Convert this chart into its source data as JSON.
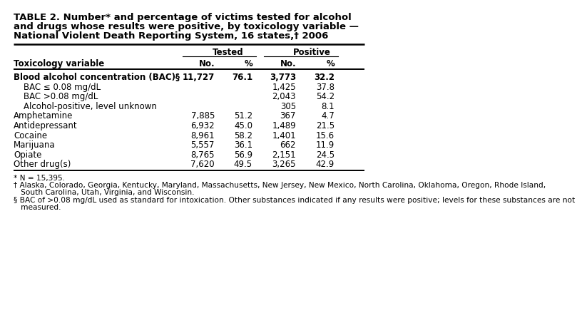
{
  "title_lines": [
    "TABLE 2. Number* and percentage of victims tested for alcohol",
    "and drugs whose results were positive, by toxicology variable —",
    "National Violent Death Reporting System, 16 states,† 2006"
  ],
  "col_header_label": "Toxicology variable",
  "rows": [
    {
      "label": "Blood alcohol concentration (BAC)§",
      "indent": false,
      "bold": true,
      "t_no": "11,727",
      "t_pct": "76.1",
      "p_no": "3,773",
      "p_pct": "32.2"
    },
    {
      "label": "BAC ≤ 0.08 mg/dL",
      "indent": true,
      "bold": false,
      "t_no": "",
      "t_pct": "",
      "p_no": "1,425",
      "p_pct": "37.8"
    },
    {
      "label": "BAC >0.08 mg/dL",
      "indent": true,
      "bold": false,
      "t_no": "",
      "t_pct": "",
      "p_no": "2,043",
      "p_pct": "54.2"
    },
    {
      "label": "Alcohol-positive, level unknown",
      "indent": true,
      "bold": false,
      "t_no": "",
      "t_pct": "",
      "p_no": "305",
      "p_pct": "8.1"
    },
    {
      "label": "Amphetamine",
      "indent": false,
      "bold": false,
      "t_no": "7,885",
      "t_pct": "51.2",
      "p_no": "367",
      "p_pct": "4.7"
    },
    {
      "label": "Antidepressant",
      "indent": false,
      "bold": false,
      "t_no": "6,932",
      "t_pct": "45.0",
      "p_no": "1,489",
      "p_pct": "21.5"
    },
    {
      "label": "Cocaine",
      "indent": false,
      "bold": false,
      "t_no": "8,961",
      "t_pct": "58.2",
      "p_no": "1,401",
      "p_pct": "15.6"
    },
    {
      "label": "Marijuana",
      "indent": false,
      "bold": false,
      "t_no": "5,557",
      "t_pct": "36.1",
      "p_no": "662",
      "p_pct": "11.9"
    },
    {
      "label": "Opiate",
      "indent": false,
      "bold": false,
      "t_no": "8,765",
      "t_pct": "56.9",
      "p_no": "2,151",
      "p_pct": "24.5"
    },
    {
      "label": "Other drug(s)",
      "indent": false,
      "bold": false,
      "t_no": "7,620",
      "t_pct": "49.5",
      "p_no": "3,265",
      "p_pct": "42.9"
    }
  ],
  "footnote_lines": [
    [
      "* N = 15,395.",
      false
    ],
    [
      "† Alaska, Colorado, Georgia, Kentucky, Maryland, Massachusetts, New Jersey, New Mexico, North Carolina, Oklahoma, Oregon, Rhode Island,",
      false
    ],
    [
      "   South Carolina, Utah, Virginia, and Wisconsin.",
      false
    ],
    [
      "§ BAC of >0.08 mg/dL used as standard for intoxication. Other substances indicated if any results were positive; levels for these substances are not",
      false
    ],
    [
      "   measured.",
      false
    ]
  ],
  "bg_color": "#ffffff",
  "text_color": "#000000",
  "font_title": 9.5,
  "font_table": 8.5,
  "font_footnote": 7.6
}
